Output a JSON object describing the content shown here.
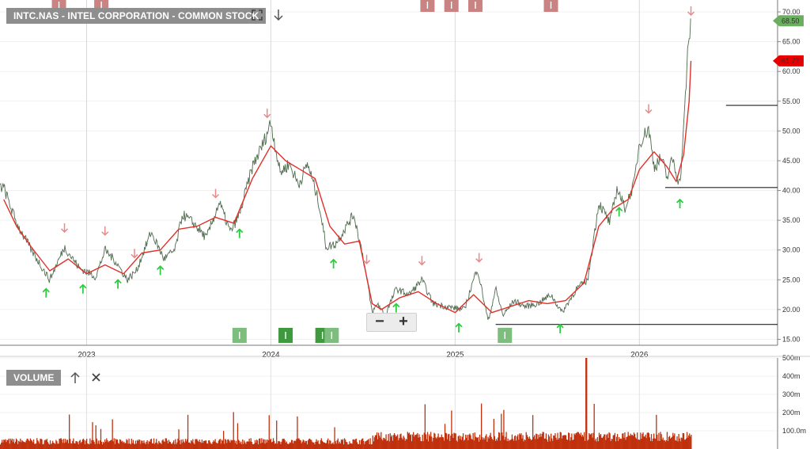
{
  "header": {
    "title": "INTC.NAS - INTEL CORPORATION - COMMON STOCK",
    "icons": [
      "fullscreen-icon",
      "arrow-down-icon"
    ]
  },
  "volume_panel": {
    "label": "VOLUME",
    "icons": [
      "arrow-up-icon",
      "close-icon"
    ]
  },
  "zoom": {
    "minus": "−",
    "plus": "+"
  },
  "colors": {
    "price_line": "#3a3a3a",
    "moving_average": "#e0302a",
    "up_signal": "#2ecc40",
    "down_signal": "#e88a8a",
    "volume": "#c0300c",
    "top_marker": "#c98383",
    "bottom_marker": "#7dbd7d",
    "last_price_tag": "#e60000",
    "current_price_tag": "#6cae5f"
  },
  "chart_data": {
    "type": "line",
    "x_labels": [
      "2023",
      "2024",
      "2025",
      "2026"
    ],
    "price_axis": {
      "ticks": [
        "15.00",
        "20.00",
        "25.00",
        "30.00",
        "35.00",
        "40.00",
        "45.00",
        "50.00",
        "55.00",
        "60.00",
        "65.00",
        "70.00"
      ],
      "ylim": [
        14,
        72
      ]
    },
    "volume_axis": {
      "ticks": [
        "100.0m",
        "200m",
        "300m",
        "400m",
        "500m"
      ],
      "ylim": [
        0,
        500
      ]
    },
    "price_tags": {
      "current": "68.50",
      "last": "61.77"
    },
    "series": [
      {
        "name": "",
        "x": [
          2022.55,
          2022.62,
          2022.7,
          2022.8,
          2022.88,
          2022.96,
          2023.05,
          2023.1,
          2023.16,
          2023.22,
          2023.27,
          2023.35,
          2023.42,
          2023.48,
          2023.52,
          2023.58,
          2023.65,
          2023.72,
          2023.78,
          2023.83,
          2023.9,
          2023.96,
          2024.0,
          2024.05,
          2024.1,
          2024.15,
          2024.2,
          2024.26,
          2024.3,
          2024.35,
          2024.45,
          2024.5,
          2024.55,
          2024.58,
          2024.62,
          2024.68,
          2024.75,
          2024.82,
          2024.88,
          2024.95,
          2025.05,
          2025.12,
          2025.18,
          2025.22,
          2025.26,
          2025.32,
          2025.38,
          2025.45,
          2025.52,
          2025.58,
          2025.66,
          2025.72,
          2025.78,
          2025.84,
          2025.88,
          2025.92,
          2025.97,
          2026.0,
          2026.05,
          2026.08,
          2026.12,
          2026.15,
          2026.18,
          2026.2,
          2026.22,
          2026.24,
          2026.26,
          2026.28
        ],
        "values": [
          40.5,
          34.5,
          30.0,
          25.0,
          30.5,
          27.0,
          25.5,
          30.0,
          28.0,
          25.0,
          26.5,
          33.0,
          28.5,
          30.0,
          36.0,
          34.5,
          32.0,
          38.0,
          33.0,
          36.0,
          44.0,
          48.0,
          51.5,
          43.0,
          44.5,
          41.0,
          44.5,
          38.0,
          30.5,
          31.0,
          36.0,
          29.0,
          19.5,
          21.0,
          19.0,
          23.5,
          22.5,
          25.0,
          21.0,
          20.5,
          20.0,
          27.0,
          18.0,
          23.5,
          19.0,
          21.5,
          20.5,
          21.0,
          22.5,
          19.5,
          23.5,
          25.0,
          38.0,
          34.5,
          40.5,
          37.0,
          41.0,
          48.0,
          50.5,
          44.0,
          45.5,
          42.0,
          45.5,
          43.0,
          41.0,
          50.0,
          62.0,
          68.5
        ]
      },
      {
        "name": "",
        "x": [
          2022.55,
          2022.62,
          2022.7,
          2022.8,
          2022.9,
          2023.0,
          2023.1,
          2023.2,
          2023.3,
          2023.4,
          2023.5,
          2023.6,
          2023.7,
          2023.8,
          2023.9,
          2024.0,
          2024.08,
          2024.16,
          2024.24,
          2024.32,
          2024.4,
          2024.48,
          2024.55,
          2024.6,
          2024.7,
          2024.8,
          2024.9,
          2025.0,
          2025.1,
          2025.2,
          2025.3,
          2025.4,
          2025.5,
          2025.6,
          2025.7,
          2025.78,
          2025.86,
          2025.94,
          2026.0,
          2026.08,
          2026.15,
          2026.2,
          2026.24,
          2026.27,
          2026.28
        ],
        "values": [
          38.5,
          34.0,
          30.5,
          26.5,
          28.5,
          26.0,
          27.5,
          26.0,
          29.5,
          30.0,
          33.5,
          34.0,
          35.5,
          34.5,
          42.0,
          47.5,
          45.0,
          43.5,
          42.0,
          34.0,
          31.0,
          31.5,
          21.0,
          20.0,
          22.0,
          23.0,
          21.0,
          19.5,
          22.5,
          19.5,
          20.5,
          21.5,
          21.0,
          21.5,
          24.5,
          34.0,
          37.0,
          38.5,
          43.5,
          46.5,
          44.0,
          41.5,
          46.0,
          55.0,
          61.77
        ]
      }
    ],
    "signals": {
      "up": [
        2022.78,
        2022.98,
        2023.17,
        2023.4,
        2023.83,
        2024.34,
        2024.68,
        2025.02,
        2025.26,
        2025.57,
        2025.89,
        2026.22
      ],
      "down": [
        2022.88,
        2023.1,
        2023.26,
        2023.7,
        2023.98,
        2024.52,
        2024.82,
        2025.13,
        2026.05,
        2026.28
      ]
    },
    "support_lines": [
      {
        "value": 17.5,
        "x_from": 2025.22,
        "x_to": 2026.75
      },
      {
        "value": 40.5,
        "x_from": 2026.14,
        "x_to": 2026.75
      },
      {
        "value": 54.3,
        "x_from": 2026.47,
        "x_to": 2026.75
      }
    ],
    "top_markers": [
      2022.85,
      2023.08,
      2024.85,
      2024.98,
      2025.11,
      2025.52
    ],
    "bottom_markers": [
      2023.83,
      2024.08,
      2024.28,
      2024.33,
      2025.27
    ]
  }
}
